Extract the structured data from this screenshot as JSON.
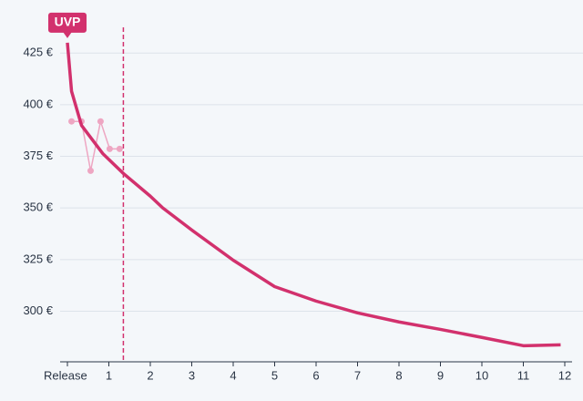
{
  "chart_data": {
    "type": "line",
    "annotation": {
      "text": "UVP",
      "x": 0,
      "y": 430
    },
    "marker_x": 1.35,
    "series": [
      {
        "color": "#d2316d",
        "x": [
          0,
          0.1,
          0.34,
          0.85,
          1.35,
          2,
          2.3,
          3,
          4,
          5,
          6,
          7,
          8,
          9,
          10,
          11,
          11.9
        ],
        "values": [
          430,
          406.5,
          390,
          376.4,
          366.7,
          355.7,
          350,
          339.3,
          324.7,
          311.9,
          304.9,
          299.2,
          294.8,
          291.2,
          287.3,
          283.3,
          283.7
        ]
      },
      {
        "color": "#eea6c2",
        "x": [
          0.1,
          0.34,
          0.56,
          0.8,
          1.02,
          1.26
        ],
        "values": [
          391.9,
          391.9,
          368,
          391.9,
          378.6,
          378.6
        ]
      }
    ],
    "xlim": [
      0,
      12
    ],
    "xticks": [
      {
        "value": 0,
        "label": "Release"
      },
      1,
      2,
      3,
      4,
      5,
      6,
      7,
      8,
      9,
      10,
      11,
      12
    ],
    "ylim": [
      275.5,
      437
    ],
    "yticks": [
      {
        "value": 300,
        "label": "300 €"
      },
      {
        "value": 325,
        "label": "325 €"
      },
      {
        "value": 350,
        "label": "350 €"
      },
      {
        "value": 375,
        "label": "375 €"
      },
      {
        "value": 400,
        "label": "400 €"
      },
      {
        "value": 425,
        "label": "425 €"
      }
    ],
    "grid": true
  }
}
